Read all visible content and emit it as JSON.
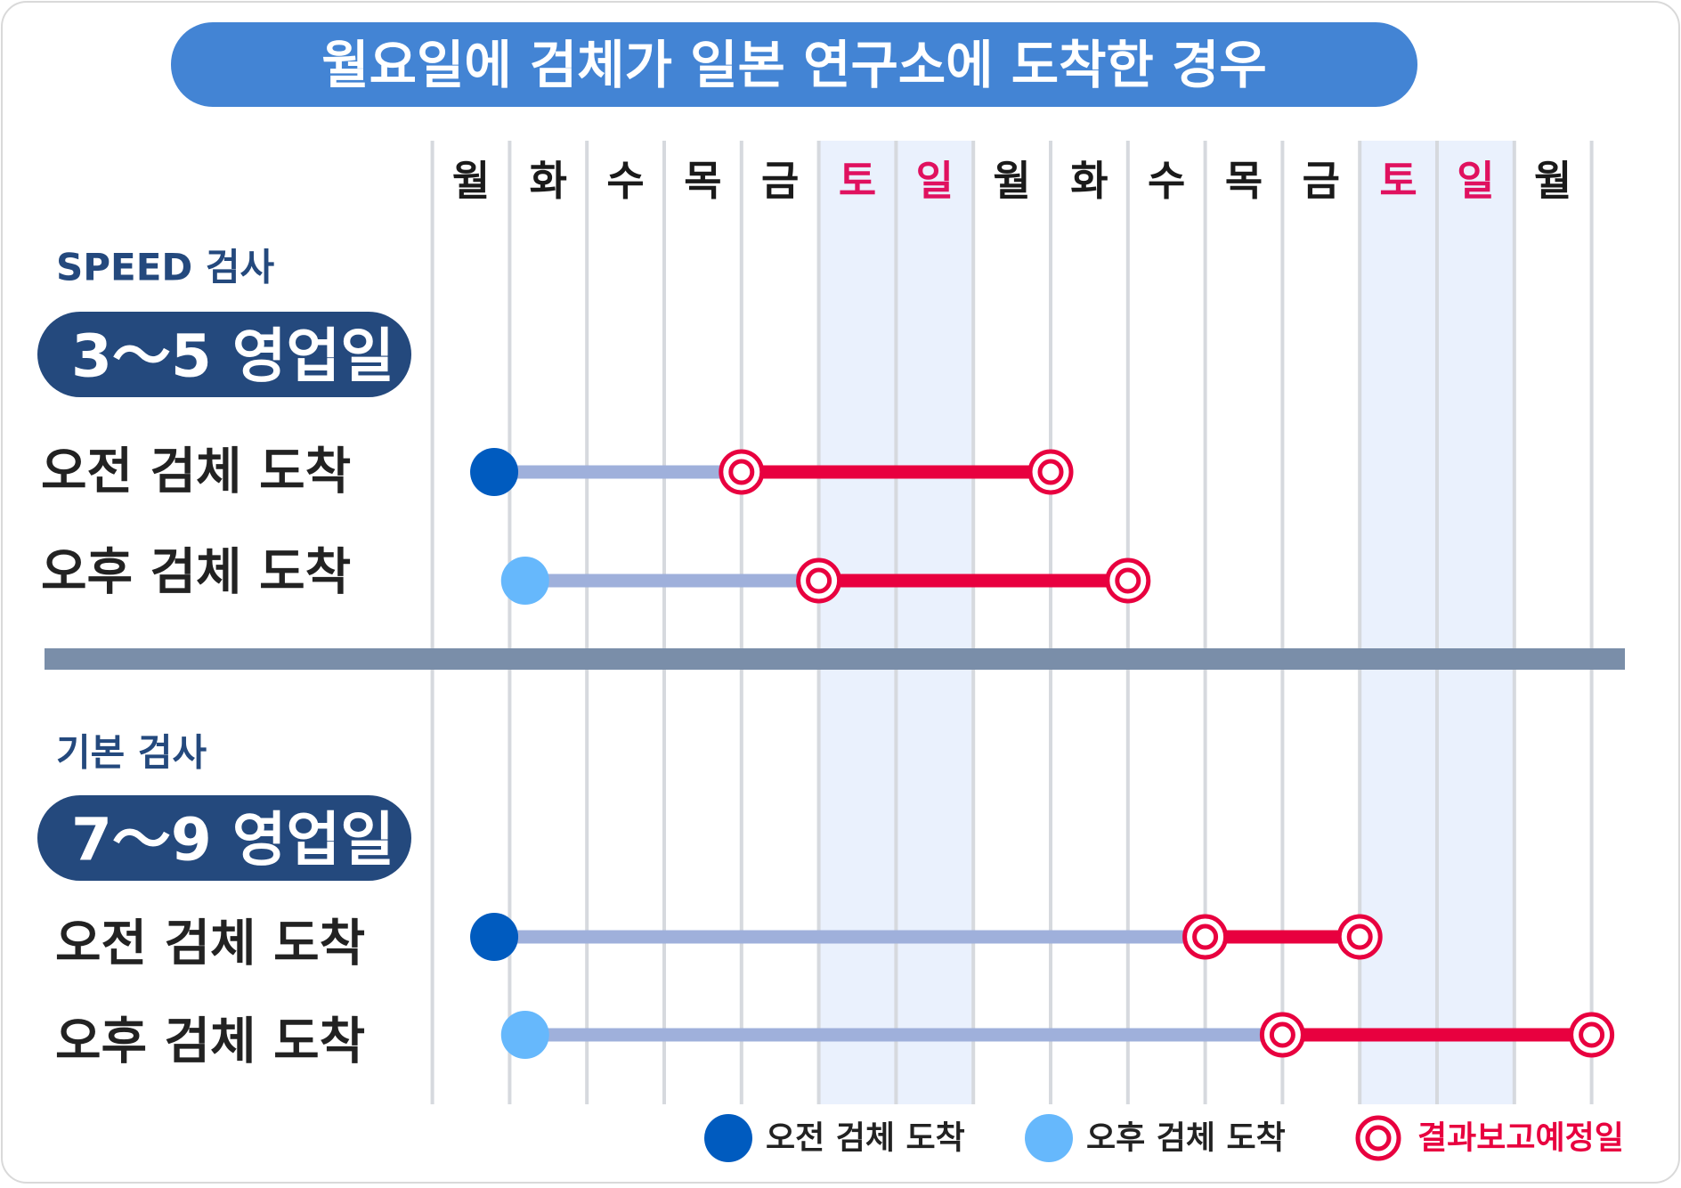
{
  "title": "월요일에 검체가 일본 연구소에 도착한 경우",
  "days": [
    "월",
    "화",
    "수",
    "목",
    "금",
    "토",
    "일",
    "월",
    "화",
    "수",
    "목",
    "금",
    "토",
    "일",
    "월"
  ],
  "weekend_indices": [
    5,
    6,
    12,
    13
  ],
  "sections": [
    {
      "name": "SPEED 검사",
      "badge": "3〜5 영업일",
      "rows": [
        {
          "label": "오전 검체 도착",
          "type": "morning",
          "start_day": 0,
          "report_from_day": 3,
          "report_to_day": 7
        },
        {
          "label": "오후 검체 도착",
          "type": "afternoon",
          "start_day": 0,
          "report_from_day": 4,
          "report_to_day": 8
        }
      ]
    },
    {
      "name": "기본 검사",
      "badge": "7〜9 영업일",
      "rows": [
        {
          "label": "오전 검체 도착",
          "type": "morning",
          "start_day": 0,
          "report_from_day": 9,
          "report_to_day": 11
        },
        {
          "label": "오후 검체 도착",
          "type": "afternoon",
          "start_day": 0,
          "report_from_day": 10,
          "report_to_day": 14
        }
      ]
    }
  ],
  "legend": [
    {
      "label": "오전 검체 도착",
      "symbol": "morning-dot"
    },
    {
      "label": "오후 검체 도착",
      "symbol": "afternoon-dot"
    },
    {
      "label": "결과보고예정일",
      "symbol": "report-ring"
    }
  ],
  "colors": {
    "title_bg": "#4384d4",
    "badge_bg": "#24497d",
    "section_text": "#24497d",
    "weekend_text": "#e0115f",
    "weekend_bg": "#eaf1fd",
    "morning_dot": "#005bbf",
    "afternoon_dot": "#66b8fc",
    "wait_bar": "#9fb0db",
    "report_bar": "#e8003f",
    "divider": "#7a8ea9",
    "grid": "#d6d9de"
  }
}
